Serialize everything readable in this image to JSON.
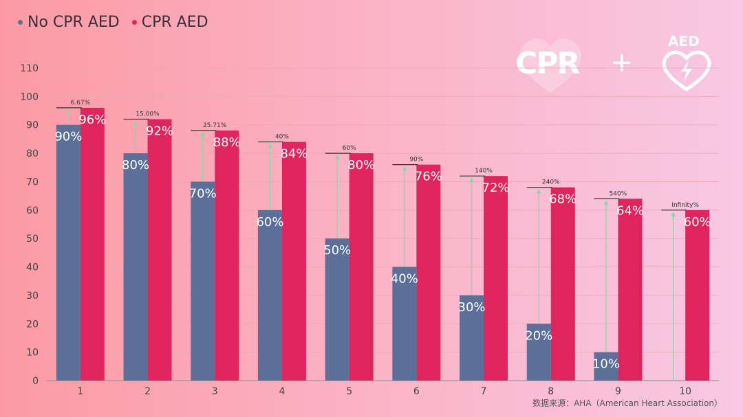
{
  "legend": [
    {
      "name": "No CPR AED",
      "color": "#5b6f98"
    },
    {
      "name": "CPR AED",
      "color": "#e0245e"
    }
  ],
  "logo": {
    "cpr": "CPR",
    "plus": "+",
    "aed": "AED",
    "icon": "heart-bolt-icon"
  },
  "source": "数据来源：AHA（American Heart Association）",
  "chart_data": {
    "type": "bar",
    "categories": [
      "1",
      "2",
      "3",
      "4",
      "5",
      "6",
      "7",
      "8",
      "9",
      "10"
    ],
    "series": [
      {
        "name": "No CPR AED",
        "color": "#5b6f98",
        "values": [
          90,
          80,
          70,
          60,
          50,
          40,
          30,
          20,
          10,
          0
        ],
        "labels": [
          "90%",
          "80%",
          "70%",
          "60%",
          "50%",
          "40%",
          "30%",
          "20%",
          "10%",
          ""
        ]
      },
      {
        "name": "CPR AED",
        "color": "#e0245e",
        "values": [
          96,
          92,
          88,
          84,
          80,
          76,
          72,
          68,
          64,
          60
        ],
        "labels": [
          "96%",
          "92%",
          "88%",
          "84%",
          "80%",
          "76%",
          "72%",
          "68%",
          "64%",
          "60%"
        ]
      }
    ],
    "increase_labels": [
      "6.67%",
      "15.00%",
      "25.71%",
      "40%",
      "60%",
      "90%",
      "140%",
      "240%",
      "540%",
      "Infinity%"
    ],
    "yticks": [
      0,
      10,
      20,
      30,
      40,
      50,
      60,
      70,
      80,
      90,
      100,
      110
    ],
    "ylim": [
      0,
      110
    ],
    "grid": true,
    "legend_position": "top-left"
  }
}
